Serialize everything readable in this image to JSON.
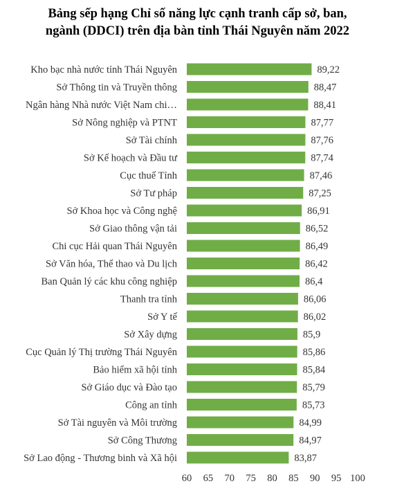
{
  "chart_data": {
    "type": "bar",
    "orientation": "horizontal",
    "title_lines": [
      "Bảng sếp hạng Chỉ số năng lực cạnh tranh cấp sở, ban,",
      "ngành (DDCI) trên địa bàn tỉnh Thái Nguyên năm 2022"
    ],
    "categories": [
      "Kho bạc nhà nước tỉnh Thái Nguyên",
      "Sở Thông tin và Truyền thông",
      "Ngân hàng Nhà nước Việt Nam chi…",
      "Sở Nông nghiệp và PTNT",
      "Sở Tài chính",
      "Sở Kế hoạch và Đầu tư",
      "Cục thuế Tỉnh",
      "Sở Tư pháp",
      "Sở Khoa học và Công nghệ",
      "Sở Giao thông vận tải",
      "Chi cục Hải quan Thái Nguyên",
      "Sở Văn hóa, Thể thao và Du lịch",
      "Ban Quản lý các khu công nghiệp",
      "Thanh tra tỉnh",
      "Sở Y tế",
      "Sở Xây dựng",
      "Cục Quản lý Thị trường Thái Nguyên",
      "Bảo hiểm xã hội tỉnh",
      "Sở Giáo dục và Đào tạo",
      "Công an tỉnh",
      "Sở Tài nguyên và Môi trường",
      "Sở Công Thương",
      "Sở Lao động - Thương binh và Xã hội"
    ],
    "values": [
      89.22,
      88.47,
      88.41,
      87.77,
      87.76,
      87.74,
      87.46,
      87.25,
      86.91,
      86.52,
      86.49,
      86.42,
      86.4,
      86.06,
      86.02,
      85.9,
      85.86,
      85.84,
      85.79,
      85.73,
      84.99,
      84.97,
      83.87
    ],
    "value_labels": [
      "89,22",
      "88,47",
      "88,41",
      "87,77",
      "87,76",
      "87,74",
      "87,46",
      "87,25",
      "86,91",
      "86,52",
      "86,49",
      "86,42",
      "86,4",
      "86,06",
      "86,02",
      "85,9",
      "85,86",
      "85,84",
      "85,79",
      "85,73",
      "84,99",
      "84,97",
      "83,87"
    ],
    "xlim": [
      60,
      100
    ],
    "x_ticks": [
      60,
      65,
      70,
      75,
      80,
      85,
      90,
      95,
      100
    ],
    "grid": false,
    "legend": "none",
    "bar_color": "#70AD47",
    "text_color": "#333333"
  }
}
